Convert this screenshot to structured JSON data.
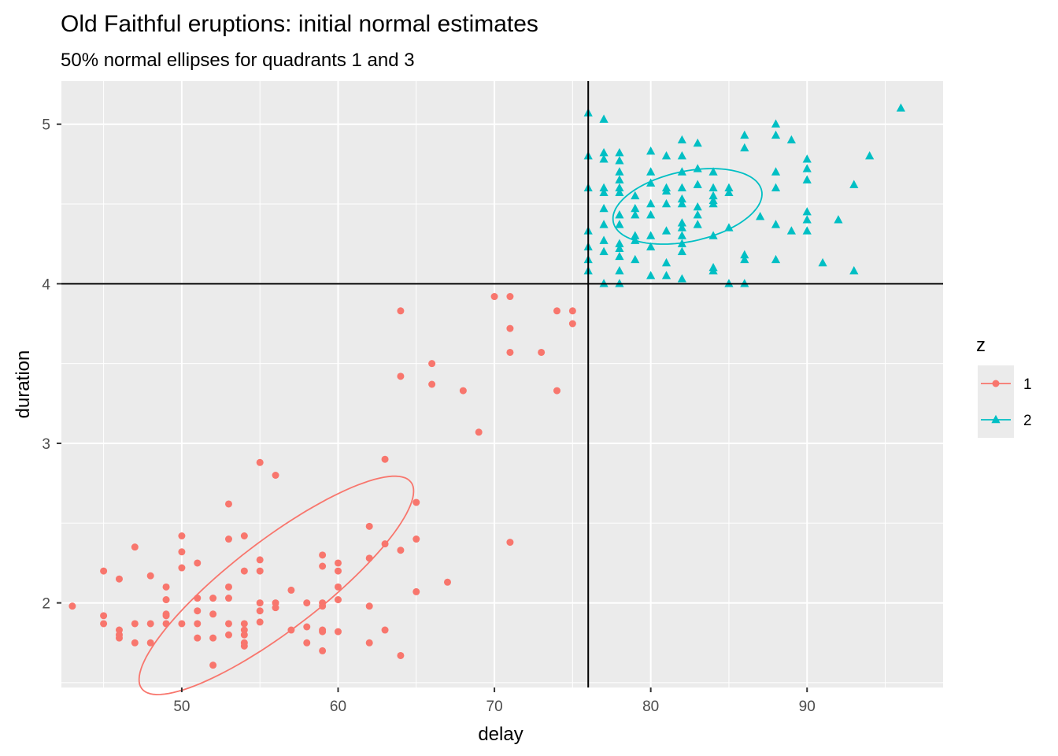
{
  "chart_data": {
    "type": "scatter",
    "title": "Old Faithful eruptions: initial normal estimates",
    "subtitle": "50% normal ellipses for quadrants 1 and 3",
    "xlabel": "delay",
    "ylabel": "duration",
    "xlim": [
      42.3,
      98.7
    ],
    "ylim": [
      1.47,
      5.27
    ],
    "x_ticks": [
      50,
      60,
      70,
      80,
      90
    ],
    "y_ticks": [
      2,
      3,
      4,
      5
    ],
    "grid": true,
    "legend_title": "z",
    "legend_position": "right",
    "reference_lines": {
      "x": 76,
      "y": 4
    },
    "series": [
      {
        "name": "1",
        "color": "#F8766D",
        "marker": "circle",
        "points": [
          [
            43,
            1.98
          ],
          [
            45,
            2.2
          ],
          [
            45,
            1.92
          ],
          [
            45,
            1.87
          ],
          [
            46,
            2.15
          ],
          [
            46,
            1.83
          ],
          [
            46,
            1.8
          ],
          [
            46,
            1.78
          ],
          [
            47,
            2.35
          ],
          [
            47,
            1.87
          ],
          [
            47,
            1.75
          ],
          [
            48,
            2.17
          ],
          [
            48,
            1.87
          ],
          [
            48,
            1.75
          ],
          [
            49,
            2.1
          ],
          [
            49,
            2.02
          ],
          [
            49,
            1.93
          ],
          [
            49,
            1.92
          ],
          [
            49,
            1.87
          ],
          [
            50,
            2.42
          ],
          [
            50,
            2.32
          ],
          [
            50,
            2.22
          ],
          [
            50,
            1.87
          ],
          [
            51,
            2.25
          ],
          [
            51,
            2.03
          ],
          [
            51,
            1.95
          ],
          [
            51,
            1.87
          ],
          [
            51,
            1.78
          ],
          [
            52,
            2.03
          ],
          [
            52,
            1.93
          ],
          [
            52,
            1.78
          ],
          [
            52,
            1.61
          ],
          [
            53,
            2.62
          ],
          [
            53,
            2.4
          ],
          [
            53,
            2.1
          ],
          [
            53,
            2.03
          ],
          [
            53,
            1.87
          ],
          [
            53,
            1.8
          ],
          [
            54,
            2.42
          ],
          [
            54,
            2.2
          ],
          [
            54,
            1.87
          ],
          [
            54,
            1.83
          ],
          [
            54,
            1.8
          ],
          [
            54,
            1.75
          ],
          [
            54,
            1.73
          ],
          [
            55,
            2.88
          ],
          [
            55,
            2.27
          ],
          [
            55,
            2.2
          ],
          [
            55,
            2.0
          ],
          [
            55,
            1.95
          ],
          [
            55,
            1.88
          ],
          [
            56,
            2.8
          ],
          [
            56,
            2.0
          ],
          [
            56,
            1.97
          ],
          [
            57,
            2.08
          ],
          [
            57,
            1.83
          ],
          [
            58,
            2.0
          ],
          [
            58,
            1.85
          ],
          [
            58,
            1.75
          ],
          [
            59,
            2.3
          ],
          [
            59,
            2.23
          ],
          [
            59,
            2.0
          ],
          [
            59,
            1.98
          ],
          [
            59,
            1.83
          ],
          [
            59,
            1.82
          ],
          [
            59,
            1.7
          ],
          [
            60,
            2.25
          ],
          [
            60,
            2.2
          ],
          [
            60,
            2.1
          ],
          [
            60,
            2.02
          ],
          [
            60,
            1.82
          ],
          [
            62,
            2.48
          ],
          [
            62,
            2.28
          ],
          [
            62,
            1.98
          ],
          [
            62,
            1.75
          ],
          [
            63,
            2.9
          ],
          [
            63,
            2.37
          ],
          [
            63,
            1.83
          ],
          [
            64,
            3.83
          ],
          [
            64,
            3.42
          ],
          [
            64,
            2.33
          ],
          [
            64,
            1.67
          ],
          [
            65,
            2.63
          ],
          [
            65,
            2.4
          ],
          [
            65,
            2.07
          ],
          [
            66,
            3.5
          ],
          [
            66,
            3.37
          ],
          [
            67,
            2.13
          ],
          [
            68,
            3.33
          ],
          [
            69,
            3.07
          ],
          [
            70,
            3.92
          ],
          [
            71,
            3.92
          ],
          [
            71,
            3.72
          ],
          [
            71,
            3.57
          ],
          [
            71,
            2.38
          ],
          [
            73,
            3.57
          ],
          [
            74,
            3.83
          ],
          [
            74,
            3.33
          ],
          [
            75,
            3.83
          ],
          [
            75,
            3.75
          ]
        ]
      },
      {
        "name": "2",
        "color": "#00BFC4",
        "marker": "triangle",
        "points": [
          [
            76,
            5.07
          ],
          [
            76,
            4.8
          ],
          [
            76,
            4.6
          ],
          [
            76,
            4.33
          ],
          [
            76,
            4.23
          ],
          [
            76,
            4.15
          ],
          [
            76,
            4.08
          ],
          [
            77,
            5.03
          ],
          [
            77,
            4.82
          ],
          [
            77,
            4.78
          ],
          [
            77,
            4.6
          ],
          [
            77,
            4.57
          ],
          [
            77,
            4.47
          ],
          [
            77,
            4.37
          ],
          [
            77,
            4.27
          ],
          [
            77,
            4.2
          ],
          [
            77,
            4.0
          ],
          [
            78,
            4.82
          ],
          [
            78,
            4.77
          ],
          [
            78,
            4.7
          ],
          [
            78,
            4.65
          ],
          [
            78,
            4.6
          ],
          [
            78,
            4.57
          ],
          [
            78,
            4.43
          ],
          [
            78,
            4.37
          ],
          [
            78,
            4.25
          ],
          [
            78,
            4.22
          ],
          [
            78,
            4.17
          ],
          [
            78,
            4.08
          ],
          [
            78,
            4.0
          ],
          [
            79,
            4.55
          ],
          [
            79,
            4.47
          ],
          [
            79,
            4.43
          ],
          [
            79,
            4.3
          ],
          [
            79,
            4.27
          ],
          [
            79,
            4.15
          ],
          [
            80,
            4.83
          ],
          [
            80,
            4.7
          ],
          [
            80,
            4.63
          ],
          [
            80,
            4.5
          ],
          [
            80,
            4.43
          ],
          [
            80,
            4.3
          ],
          [
            80,
            4.23
          ],
          [
            80,
            4.05
          ],
          [
            81,
            4.8
          ],
          [
            81,
            4.6
          ],
          [
            81,
            4.58
          ],
          [
            81,
            4.5
          ],
          [
            81,
            4.33
          ],
          [
            81,
            4.13
          ],
          [
            81,
            4.05
          ],
          [
            82,
            4.9
          ],
          [
            82,
            4.8
          ],
          [
            82,
            4.7
          ],
          [
            82,
            4.6
          ],
          [
            82,
            4.53
          ],
          [
            82,
            4.5
          ],
          [
            82,
            4.38
          ],
          [
            82,
            4.35
          ],
          [
            82,
            4.3
          ],
          [
            82,
            4.25
          ],
          [
            82,
            4.2
          ],
          [
            82,
            4.03
          ],
          [
            83,
            4.88
          ],
          [
            83,
            4.72
          ],
          [
            83,
            4.62
          ],
          [
            83,
            4.48
          ],
          [
            83,
            4.43
          ],
          [
            83,
            4.37
          ],
          [
            84,
            4.7
          ],
          [
            84,
            4.6
          ],
          [
            84,
            4.55
          ],
          [
            84,
            4.52
          ],
          [
            84,
            4.5
          ],
          [
            84,
            4.3
          ],
          [
            84,
            4.1
          ],
          [
            84,
            4.08
          ],
          [
            85,
            4.6
          ],
          [
            85,
            4.57
          ],
          [
            85,
            4.35
          ],
          [
            85,
            4.0
          ],
          [
            86,
            4.93
          ],
          [
            86,
            4.85
          ],
          [
            86,
            4.18
          ],
          [
            86,
            4.15
          ],
          [
            86,
            4.0
          ],
          [
            87,
            4.42
          ],
          [
            88,
            5.0
          ],
          [
            88,
            4.93
          ],
          [
            88,
            4.7
          ],
          [
            88,
            4.6
          ],
          [
            88,
            4.37
          ],
          [
            88,
            4.15
          ],
          [
            89,
            4.9
          ],
          [
            89,
            4.33
          ],
          [
            90,
            4.78
          ],
          [
            90,
            4.72
          ],
          [
            90,
            4.65
          ],
          [
            90,
            4.45
          ],
          [
            90,
            4.4
          ],
          [
            90,
            4.33
          ],
          [
            91,
            4.13
          ],
          [
            92,
            4.4
          ],
          [
            93,
            4.62
          ],
          [
            93,
            4.08
          ],
          [
            94,
            4.8
          ],
          [
            96,
            5.1
          ]
        ]
      }
    ],
    "ellipses": [
      {
        "series": "1",
        "center": [
          56.05,
          2.11
        ],
        "rx": 10.85,
        "ry": 0.28,
        "rotation_deg": -37.5
      },
      {
        "series": "2",
        "center": [
          82.35,
          4.485
        ],
        "rx": 4.85,
        "ry": 0.22,
        "rotation_deg": -12
      }
    ]
  }
}
